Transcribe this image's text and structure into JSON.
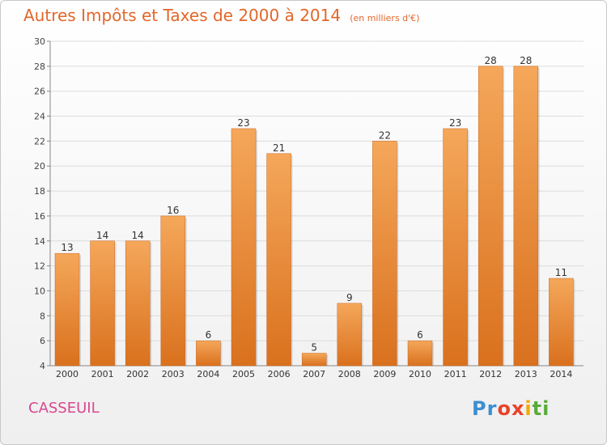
{
  "header": {
    "title": "Autres Impôts et Taxes de 2000 à 2014",
    "subtitle": "(en milliers d'€)"
  },
  "footer": {
    "town": "CASSEUIL",
    "logo": "Proxiti",
    "logo_letters": [
      {
        "ch": "P",
        "color": "#3a8fd0"
      },
      {
        "ch": "r",
        "color": "#3a8fd0"
      },
      {
        "ch": "o",
        "color": "#e8432a"
      },
      {
        "ch": "x",
        "color": "#e8432a"
      },
      {
        "ch": "i",
        "color": "#f2a900"
      },
      {
        "ch": "t",
        "color": "#5aab3c"
      },
      {
        "ch": "i",
        "color": "#5aab3c"
      }
    ]
  },
  "colors": {
    "bar_light": "#f5a75a",
    "bar_dark": "#d9711e",
    "title": "#e2672a",
    "town": "#d9478f"
  },
  "chart_data": {
    "type": "bar",
    "title": "Autres Impôts et Taxes de 2000 à 2014",
    "subtitle": "(en milliers d'€)",
    "categories": [
      "2000",
      "2001",
      "2002",
      "2003",
      "2004",
      "2005",
      "2006",
      "2007",
      "2008",
      "2009",
      "2010",
      "2011",
      "2012",
      "2013",
      "2014"
    ],
    "values": [
      13,
      14,
      14,
      16,
      6,
      23,
      21,
      5,
      9,
      22,
      6,
      23,
      28,
      28,
      11
    ],
    "ylim": [
      4,
      30
    ],
    "yticks": [
      4,
      6,
      8,
      10,
      12,
      14,
      16,
      18,
      20,
      22,
      24,
      26,
      28,
      30
    ],
    "grid": true,
    "legend": "none"
  }
}
